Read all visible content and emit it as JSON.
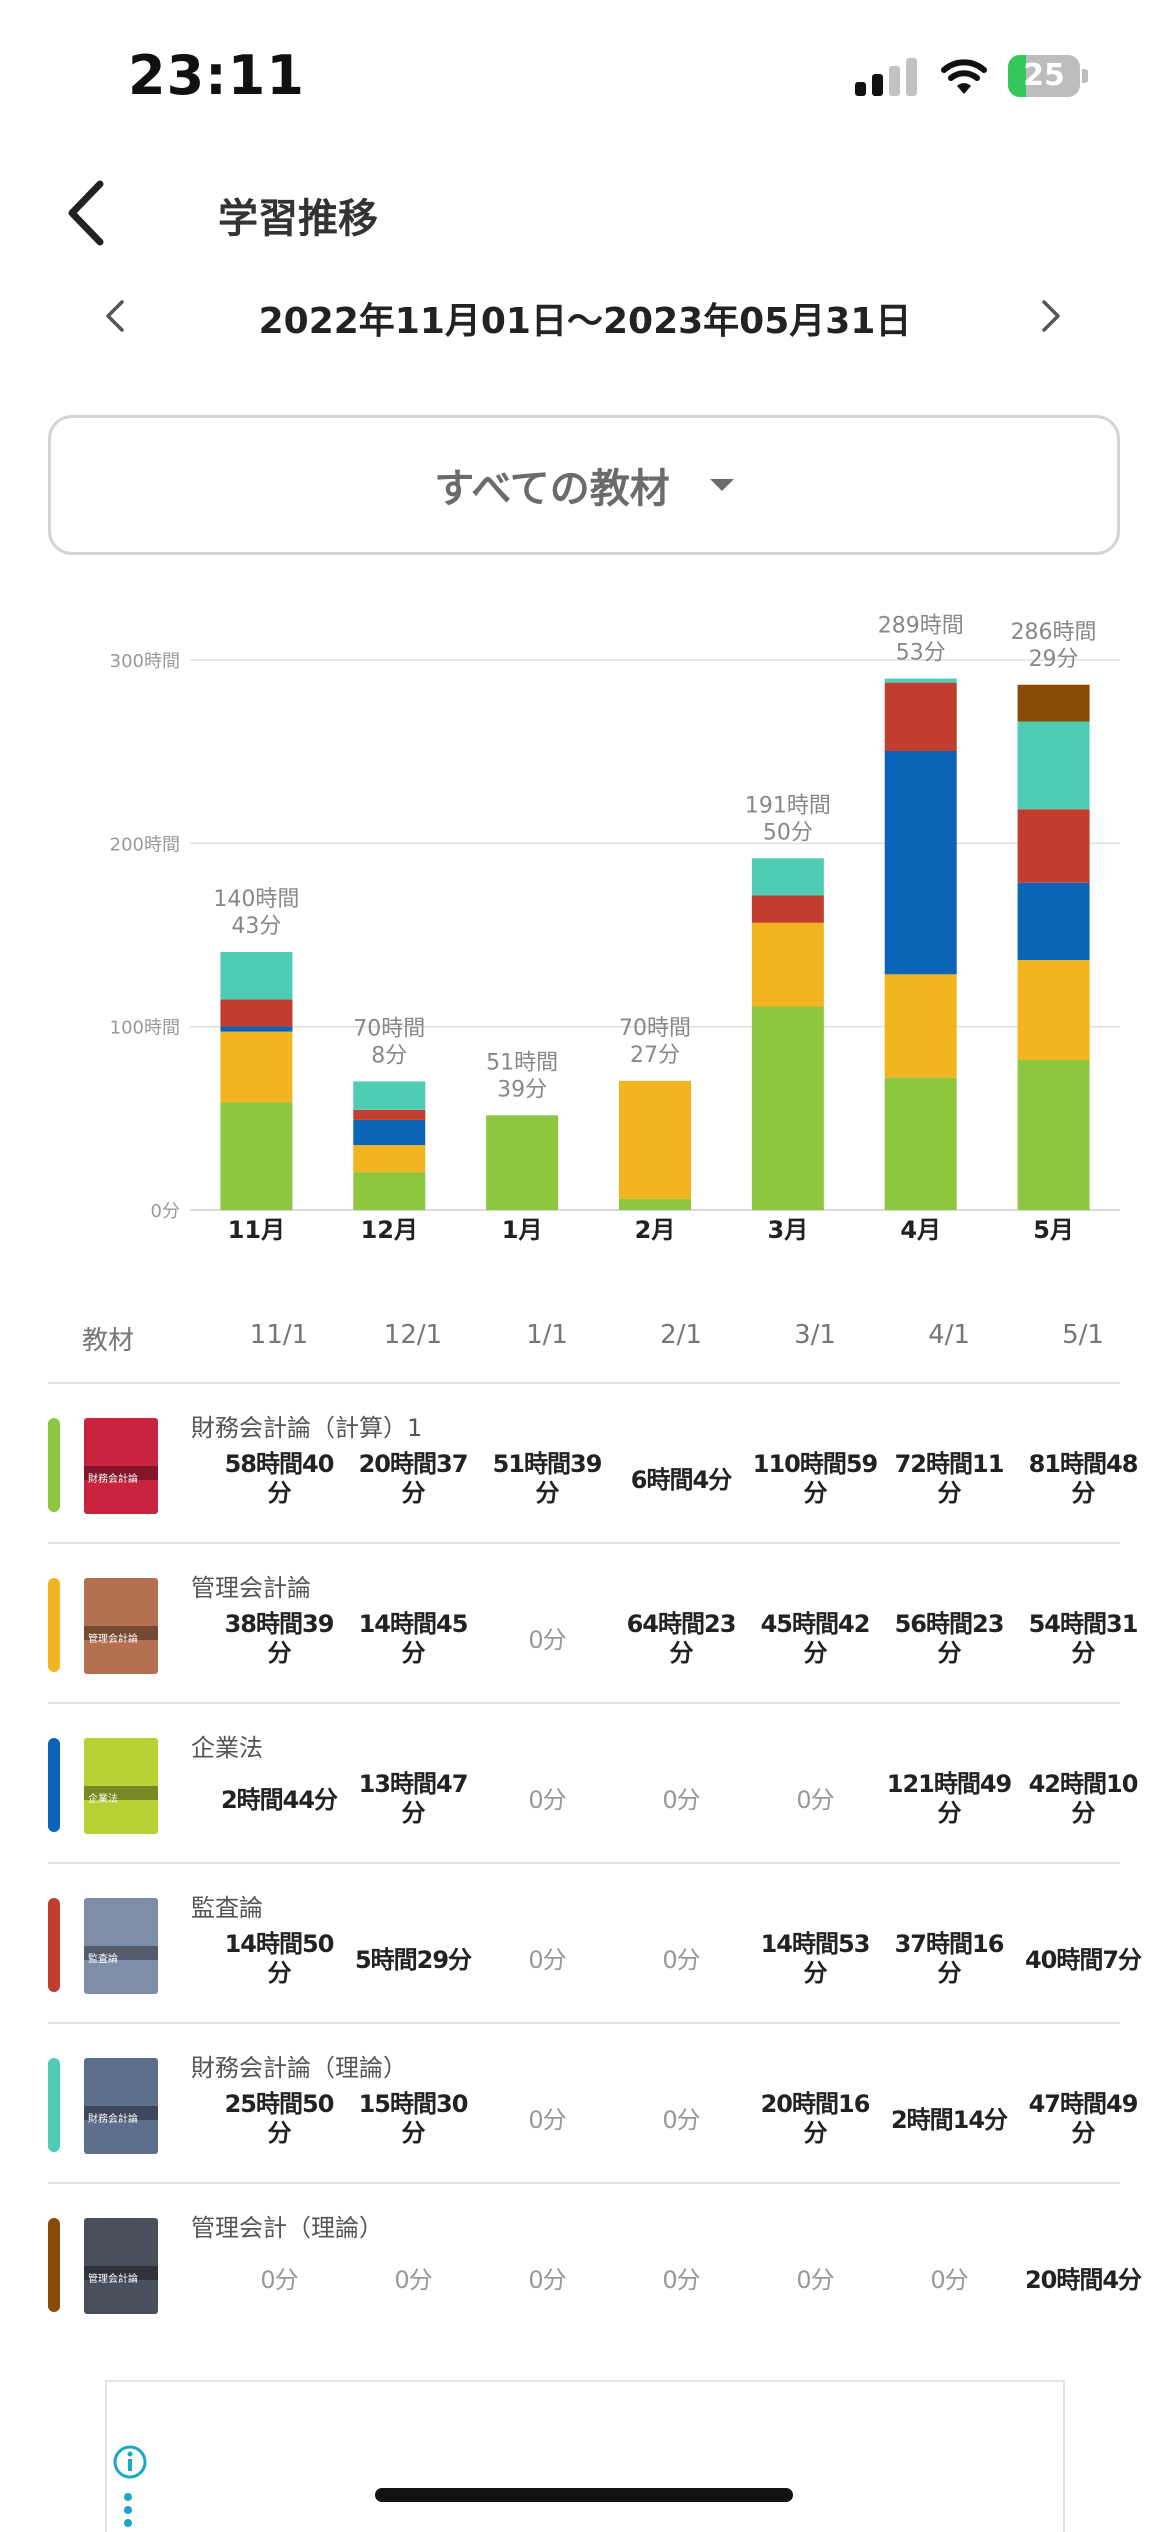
{
  "status_bar": {
    "time": "23:11",
    "battery": "25",
    "battery_level": 0.25
  },
  "header": {
    "title": "学習推移"
  },
  "date_range": {
    "label": "2022年11月01日〜2023年05月31日"
  },
  "selector": {
    "label": "すべての教材"
  },
  "colors": {
    "green": "#8dc63f",
    "yellow": "#f2b51f",
    "blue": "#0a64b8",
    "red": "#c13d2d",
    "teal": "#4ecdb4",
    "brown": "#8a4b08"
  },
  "chart_data": {
    "type": "bar",
    "stacked": true,
    "categories": [
      "11月",
      "12月",
      "1月",
      "2月",
      "3月",
      "4月",
      "5月"
    ],
    "ylim": [
      0,
      300
    ],
    "yticks": [
      0,
      100,
      200,
      300
    ],
    "ytick_labels": [
      "0分",
      "100時間",
      "200時間",
      "300時間"
    ],
    "grid": true,
    "total_labels": [
      [
        "140時間",
        "43分"
      ],
      [
        "70時間",
        "8分"
      ],
      [
        "51時間",
        "39分"
      ],
      [
        "70時間",
        "27分"
      ],
      [
        "191時間",
        "50分"
      ],
      [
        "289時間",
        "53分"
      ],
      [
        "286時間",
        "29分"
      ]
    ],
    "series": [
      {
        "name": "財務会計論（計算）1",
        "color": "#8dc63f",
        "values": [
          58.67,
          20.62,
          51.65,
          6.07,
          110.98,
          72.18,
          81.8
        ]
      },
      {
        "name": "管理会計論",
        "color": "#f2b51f",
        "values": [
          38.65,
          14.75,
          0,
          64.38,
          45.7,
          56.38,
          54.52
        ]
      },
      {
        "name": "企業法",
        "color": "#0a64b8",
        "values": [
          2.73,
          13.78,
          0,
          0,
          0,
          121.82,
          42.17
        ]
      },
      {
        "name": "監査論",
        "color": "#c13d2d",
        "values": [
          14.83,
          5.48,
          0,
          0,
          14.88,
          37.27,
          40.12
        ]
      },
      {
        "name": "財務会計論（理論）",
        "color": "#4ecdb4",
        "values": [
          25.83,
          15.5,
          0,
          0,
          20.27,
          2.23,
          47.82
        ]
      },
      {
        "name": "管理会計（理論）",
        "color": "#8a4b08",
        "values": [
          0,
          0,
          0,
          0,
          0,
          0,
          20.07
        ]
      }
    ]
  },
  "table": {
    "header_label": "教材",
    "columns": [
      "11/1",
      "12/1",
      "1/1",
      "2/1",
      "3/1",
      "4/1",
      "5/1"
    ],
    "rows": [
      {
        "name": "財務会計論（計算）1",
        "thumb_title": "財務会計論",
        "color": "#8dc63f",
        "cells": [
          [
            "58時間40",
            "分"
          ],
          [
            "20時間37",
            "分"
          ],
          [
            "51時間39",
            "分"
          ],
          [
            "6時間4分"
          ],
          [
            "110時間59",
            "分"
          ],
          [
            "72時間11",
            "分"
          ],
          [
            "81時間48",
            "分"
          ]
        ]
      },
      {
        "name": "管理会計論",
        "thumb_title": "管理会計論",
        "color": "#f2b51f",
        "cells": [
          [
            "38時間39",
            "分"
          ],
          [
            "14時間45",
            "分"
          ],
          [
            "0分"
          ],
          [
            "64時間23",
            "分"
          ],
          [
            "45時間42",
            "分"
          ],
          [
            "56時間23",
            "分"
          ],
          [
            "54時間31",
            "分"
          ]
        ]
      },
      {
        "name": "企業法",
        "thumb_title": "企業法",
        "color": "#0a64b8",
        "cells": [
          [
            "2時間44分"
          ],
          [
            "13時間47",
            "分"
          ],
          [
            "0分"
          ],
          [
            "0分"
          ],
          [
            "0分"
          ],
          [
            "121時間49",
            "分"
          ],
          [
            "42時間10",
            "分"
          ]
        ]
      },
      {
        "name": "監査論",
        "thumb_title": "監査論",
        "color": "#c13d2d",
        "cells": [
          [
            "14時間50",
            "分"
          ],
          [
            "5時間29分"
          ],
          [
            "0分"
          ],
          [
            "0分"
          ],
          [
            "14時間53",
            "分"
          ],
          [
            "37時間16",
            "分"
          ],
          [
            "40時間7分"
          ]
        ]
      },
      {
        "name": "財務会計論（理論）",
        "thumb_title": "財務会計論",
        "color": "#4ecdb4",
        "cells": [
          [
            "25時間50",
            "分"
          ],
          [
            "15時間30",
            "分"
          ],
          [
            "0分"
          ],
          [
            "0分"
          ],
          [
            "20時間16",
            "分"
          ],
          [
            "2時間14分"
          ],
          [
            "47時間49",
            "分"
          ]
        ]
      },
      {
        "name": "管理会計（理論）",
        "thumb_title": "管理会計論",
        "color": "#8a4b08",
        "cells": [
          [
            "0分"
          ],
          [
            "0分"
          ],
          [
            "0分"
          ],
          [
            "0分"
          ],
          [
            "0分"
          ],
          [
            "0分"
          ],
          [
            "20時間4分"
          ]
        ]
      }
    ]
  }
}
